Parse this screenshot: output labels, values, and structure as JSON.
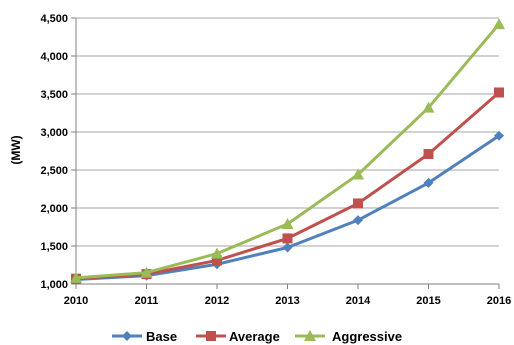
{
  "chart_data": {
    "type": "line",
    "title": "",
    "xlabel": "",
    "ylabel": "(MW)",
    "x": [
      "2010",
      "2011",
      "2012",
      "2013",
      "2014",
      "2015",
      "2016"
    ],
    "xlim": [
      2010,
      2016
    ],
    "ylim": [
      1000,
      4500
    ],
    "yticks": [
      "1,000",
      "1,500",
      "2,000",
      "2,500",
      "3,000",
      "3,500",
      "4,000",
      "4,500"
    ],
    "grid": "horizontal",
    "legend": "bottom",
    "series": [
      {
        "name": "Base",
        "color": "#4F81BD",
        "marker": "diamond",
        "values": [
          1060,
          1110,
          1260,
          1480,
          1840,
          2330,
          2950
        ]
      },
      {
        "name": "Average",
        "color": "#C0504D",
        "marker": "square",
        "values": [
          1070,
          1130,
          1310,
          1600,
          2060,
          2710,
          3520
        ]
      },
      {
        "name": "Aggressive",
        "color": "#9BBB59",
        "marker": "triangle",
        "values": [
          1080,
          1150,
          1400,
          1790,
          2440,
          3320,
          4420
        ]
      }
    ]
  }
}
